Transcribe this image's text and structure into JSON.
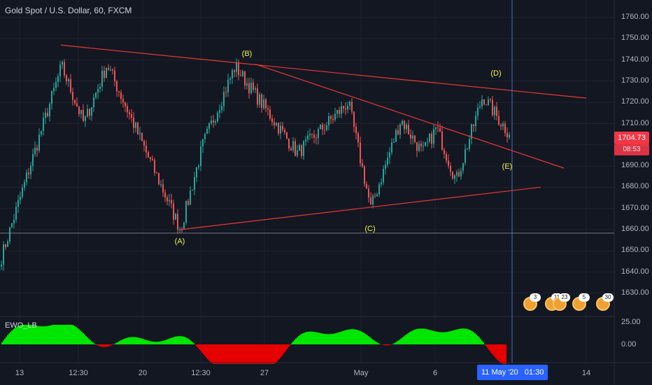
{
  "header": {
    "title": "Gold Spot / U.S. Dollar, 60, FXCM"
  },
  "price_axis": {
    "labels": [
      "1760.00",
      "1750.00",
      "1740.00",
      "1730.00",
      "1720.00",
      "1710.00",
      "1700.00",
      "1690.00",
      "1680.00",
      "1670.00",
      "1660.00",
      "1650.00",
      "1640.00",
      "1630.00"
    ],
    "last_price": "1704.73",
    "countdown": "08:53"
  },
  "indicator": {
    "label": "EWO_LB",
    "axis_labels": [
      "25.00",
      "0.00"
    ]
  },
  "time_axis": {
    "labels": [
      "13",
      "12:30",
      "20",
      "12:30",
      "27",
      "May",
      "6",
      "14"
    ],
    "cursor_date": "11 May '20",
    "cursor_time": "01:30"
  },
  "wave_labels": [
    "(A)",
    "(B)",
    "(C)",
    "(D)",
    "(E)"
  ],
  "events": [
    {
      "count": "3"
    },
    {
      "count": "11"
    },
    {
      "count": "23"
    },
    {
      "count": "5"
    },
    {
      "count": "30"
    }
  ],
  "colors": {
    "background": "#131722",
    "up": "#26a69a",
    "down": "#ef5350",
    "trendline": "#e53935",
    "wave_label": "#f5f544",
    "ewo_positive": "#00e600",
    "ewo_negative": "#e60000",
    "crosshair": "#4a6eb0"
  },
  "chart_data": {
    "type": "candlestick",
    "symbol": "Gold Spot / U.S. Dollar",
    "interval": "60",
    "ylim": [
      1645,
      1765
    ],
    "last": 1704.73,
    "pivots": [
      {
        "label": "start",
        "price": 1647
      },
      {
        "label": "",
        "price": 1737
      },
      {
        "label": "",
        "price": 1710
      },
      {
        "label": "",
        "price": 1738
      },
      {
        "label": "(A)",
        "price": 1660
      },
      {
        "label": "",
        "price": 1700
      },
      {
        "label": "(B)",
        "price": 1737
      },
      {
        "label": "",
        "price": 1696
      },
      {
        "label": "",
        "price": 1720
      },
      {
        "label": "(C)",
        "price": 1670
      },
      {
        "label": "",
        "price": 1712
      },
      {
        "label": "",
        "price": 1696
      },
      {
        "label": "",
        "price": 1708
      },
      {
        "label": "",
        "price": 1683
      },
      {
        "label": "(D)",
        "price": 1723
      },
      {
        "label": "last",
        "price": 1705
      }
    ],
    "trendlines": [
      {
        "from": 1747,
        "to": 1722
      },
      {
        "from": 1738,
        "to": 1689
      },
      {
        "from": 1660,
        "to": 1680
      }
    ],
    "hline": 1659.5,
    "indicator": "EWO_LB"
  }
}
